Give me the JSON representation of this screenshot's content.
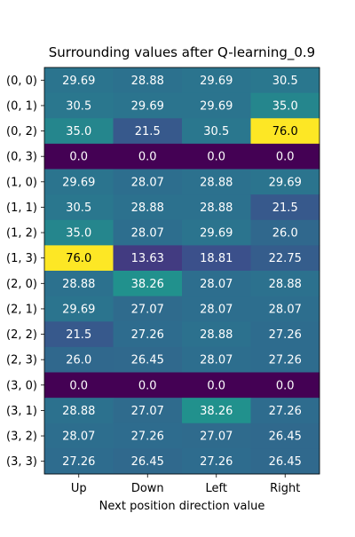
{
  "chart_data": {
    "type": "heatmap",
    "title": "Surrounding values after Q-learning_0.9",
    "xlabel": "Next position direction value",
    "ylabel": "",
    "x_categories": [
      "Up",
      "Down",
      "Left",
      "Right"
    ],
    "y_categories": [
      "(0, 0)",
      "(0, 1)",
      "(0, 2)",
      "(0, 3)",
      "(1, 0)",
      "(1, 1)",
      "(1, 2)",
      "(1, 3)",
      "(2, 0)",
      "(2, 1)",
      "(2, 2)",
      "(2, 3)",
      "(3, 0)",
      "(3, 1)",
      "(3, 2)",
      "(3, 3)"
    ],
    "values": [
      [
        29.69,
        28.88,
        29.69,
        30.5
      ],
      [
        30.5,
        29.69,
        29.69,
        35.0
      ],
      [
        35.0,
        21.5,
        30.5,
        76.0
      ],
      [
        0.0,
        0.0,
        0.0,
        0.0
      ],
      [
        29.69,
        28.07,
        28.88,
        29.69
      ],
      [
        30.5,
        28.88,
        28.88,
        21.5
      ],
      [
        35.0,
        28.07,
        29.69,
        26.0
      ],
      [
        76.0,
        13.63,
        18.81,
        22.75
      ],
      [
        28.88,
        38.26,
        28.07,
        28.88
      ],
      [
        29.69,
        27.07,
        28.07,
        28.07
      ],
      [
        21.5,
        27.26,
        28.88,
        27.26
      ],
      [
        26.0,
        26.45,
        28.07,
        27.26
      ],
      [
        0.0,
        0.0,
        0.0,
        0.0
      ],
      [
        28.88,
        27.07,
        38.26,
        27.26
      ],
      [
        28.07,
        27.26,
        27.07,
        26.45
      ],
      [
        27.26,
        26.45,
        27.26,
        26.45
      ]
    ],
    "value_labels": [
      [
        "29.69",
        "28.88",
        "29.69",
        "30.5"
      ],
      [
        "30.5",
        "29.69",
        "29.69",
        "35.0"
      ],
      [
        "35.0",
        "21.5",
        "30.5",
        "76.0"
      ],
      [
        "0.0",
        "0.0",
        "0.0",
        "0.0"
      ],
      [
        "29.69",
        "28.07",
        "28.88",
        "29.69"
      ],
      [
        "30.5",
        "28.88",
        "28.88",
        "21.5"
      ],
      [
        "35.0",
        "28.07",
        "29.69",
        "26.0"
      ],
      [
        "76.0",
        "13.63",
        "18.81",
        "22.75"
      ],
      [
        "28.88",
        "38.26",
        "28.07",
        "28.88"
      ],
      [
        "29.69",
        "27.07",
        "28.07",
        "28.07"
      ],
      [
        "21.5",
        "27.26",
        "28.88",
        "27.26"
      ],
      [
        "26.0",
        "26.45",
        "28.07",
        "27.26"
      ],
      [
        "0.0",
        "0.0",
        "0.0",
        "0.0"
      ],
      [
        "28.88",
        "27.07",
        "38.26",
        "27.26"
      ],
      [
        "28.07",
        "27.26",
        "27.07",
        "26.45"
      ],
      [
        "27.26",
        "26.45",
        "27.26",
        "26.45"
      ]
    ],
    "vmin": 0.0,
    "vmax": 76.0,
    "colormap": "viridis",
    "legend": "none",
    "grid": false
  }
}
